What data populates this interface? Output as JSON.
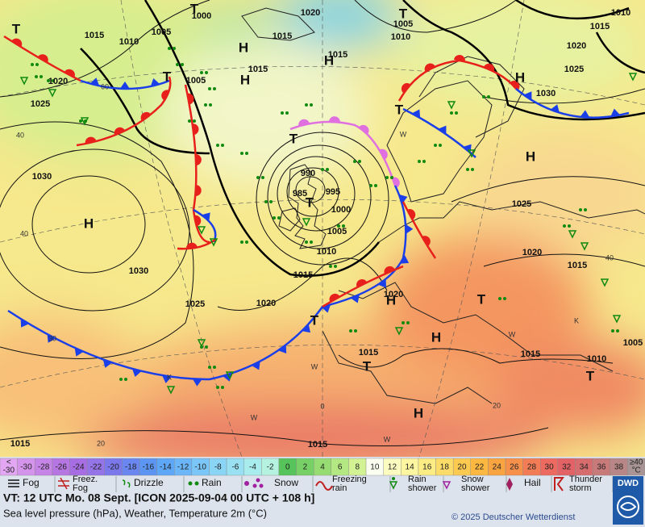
{
  "pressure_labels": [
    "1000",
    "1020",
    "1010",
    "1015",
    "1010",
    "1005",
    "1015",
    "1005",
    "1010",
    "1015",
    "1020",
    "1020",
    "1005",
    "1015",
    "1015",
    "1025",
    "1025",
    "1030",
    "1030",
    "990",
    "985",
    "995",
    "1000",
    "1005",
    "1010",
    "1015",
    "1025",
    "1020",
    "1015",
    "1030",
    "1025",
    "1020",
    "1020",
    "1015",
    "1015",
    "1010",
    "1005",
    "1015",
    "1015"
  ],
  "centers": [
    "T",
    "T",
    "H",
    "H",
    "H",
    "T",
    "T",
    "H",
    "T",
    "T",
    "H",
    "H",
    "T",
    "H",
    "T",
    "H",
    "T",
    "T",
    "H",
    "T"
  ],
  "isotherm_labels": [
    "40",
    "40",
    "30",
    "20",
    "40",
    "20",
    "0",
    "60",
    "W",
    "W",
    "W",
    "W",
    "K",
    "K",
    "W"
  ],
  "temperature_scale": {
    "steps": [
      {
        "lines": [
          "<",
          "-30"
        ],
        "color": "#e2a6f2"
      },
      {
        "lines": [
          "-30"
        ],
        "color": "#d494ec"
      },
      {
        "lines": [
          "-28"
        ],
        "color": "#c584e6"
      },
      {
        "lines": [
          "-26"
        ],
        "color": "#b676e2"
      },
      {
        "lines": [
          "-24"
        ],
        "color": "#a66ee2"
      },
      {
        "lines": [
          "-22"
        ],
        "color": "#9474e6"
      },
      {
        "lines": [
          "-20"
        ],
        "color": "#7a78ea"
      },
      {
        "lines": [
          "-18"
        ],
        "color": "#6a86f0"
      },
      {
        "lines": [
          "-16"
        ],
        "color": "#5c96f2"
      },
      {
        "lines": [
          "-14"
        ],
        "color": "#5ea6f6"
      },
      {
        "lines": [
          "-12"
        ],
        "color": "#6ab6f8"
      },
      {
        "lines": [
          "-10"
        ],
        "color": "#7ac6f8"
      },
      {
        "lines": [
          "-8"
        ],
        "color": "#8ad4f6"
      },
      {
        "lines": [
          "-6"
        ],
        "color": "#98e0f2"
      },
      {
        "lines": [
          "-4"
        ],
        "color": "#a8eced"
      },
      {
        "lines": [
          "-2"
        ],
        "color": "#b6f2e0"
      },
      {
        "lines": [
          "0"
        ],
        "color": "#56c45a"
      },
      {
        "lines": [
          "2"
        ],
        "color": "#76d066"
      },
      {
        "lines": [
          "4"
        ],
        "color": "#96dc72"
      },
      {
        "lines": [
          "6"
        ],
        "color": "#b4e882"
      },
      {
        "lines": [
          "8"
        ],
        "color": "#d2f294"
      },
      {
        "lines": [
          "10"
        ],
        "color": "#fafff0"
      },
      {
        "lines": [
          "12"
        ],
        "color": "#fcfcc0"
      },
      {
        "lines": [
          "14"
        ],
        "color": "#fcf6a0"
      },
      {
        "lines": [
          "16"
        ],
        "color": "#fcec84"
      },
      {
        "lines": [
          "18"
        ],
        "color": "#fcdc68"
      },
      {
        "lines": [
          "20"
        ],
        "color": "#fcca50"
      },
      {
        "lines": [
          "22"
        ],
        "color": "#fcb840"
      },
      {
        "lines": [
          "24"
        ],
        "color": "#f8a440"
      },
      {
        "lines": [
          "26"
        ],
        "color": "#f6904a"
      },
      {
        "lines": [
          "28"
        ],
        "color": "#f27c56"
      },
      {
        "lines": [
          "30"
        ],
        "color": "#ec6a60"
      },
      {
        "lines": [
          "32"
        ],
        "color": "#e26266"
      },
      {
        "lines": [
          "34"
        ],
        "color": "#d66c6e"
      },
      {
        "lines": [
          "36"
        ],
        "color": "#c87a7a"
      },
      {
        "lines": [
          "38"
        ],
        "color": "#b88686"
      },
      {
        "lines": [
          "≥40",
          "°C"
        ],
        "color": "#a89494"
      }
    ]
  },
  "weather_legend": [
    {
      "lines": [
        "Fog"
      ]
    },
    {
      "lines": [
        "Freez.",
        "Fog"
      ]
    },
    {
      "lines": [
        "Drizzle"
      ]
    },
    {
      "lines": [
        "Rain"
      ]
    },
    {
      "lines": [
        "Snow"
      ]
    },
    {
      "lines": [
        "Freezing",
        "rain"
      ]
    },
    {
      "lines": [
        "Rain",
        "shower"
      ]
    },
    {
      "lines": [
        "Snow",
        "shower"
      ]
    },
    {
      "lines": [
        "Hail"
      ]
    },
    {
      "lines": [
        "Thunder",
        "storm"
      ]
    }
  ],
  "footer": {
    "valid_time": "VT: 12 UTC Mo.  08 Sept. [ICON 2025-09-04  00 UTC + 108 h]",
    "description": "Sea level pressure (hPa), Weather, Temperature 2m (°C)",
    "copyright": "© 2025 Deutscher Wetterdienst",
    "logo": "DWD"
  }
}
